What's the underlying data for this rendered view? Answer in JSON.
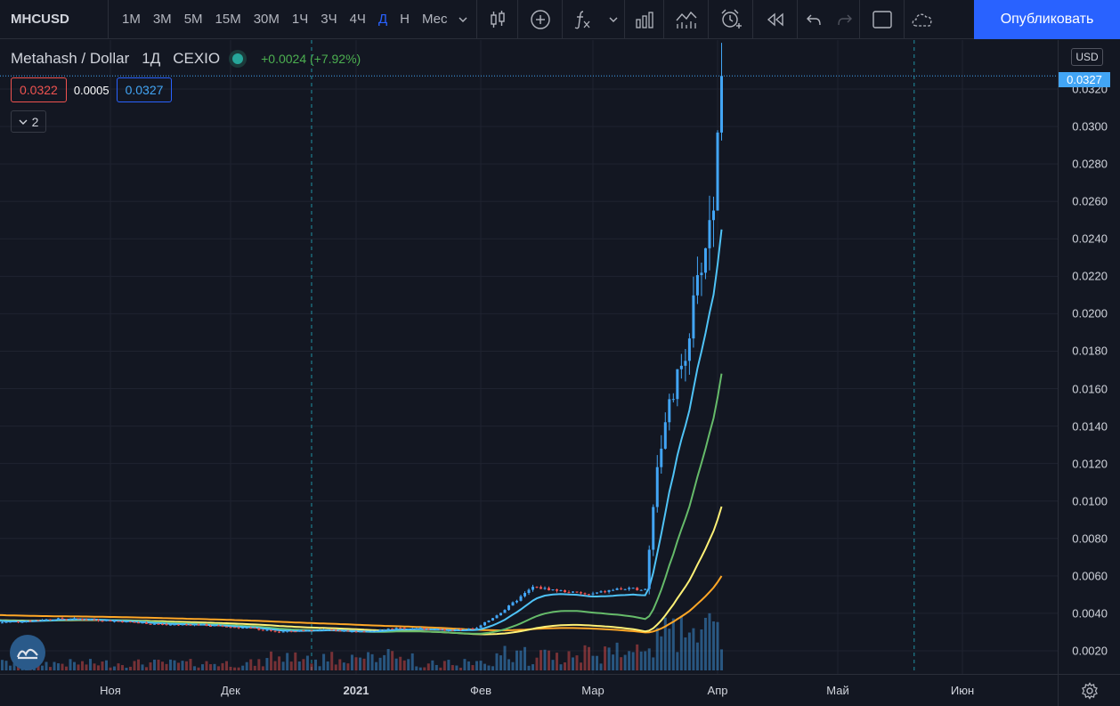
{
  "toolbar": {
    "symbol": "MHCUSD",
    "intervals": [
      "1М",
      "3М",
      "5М",
      "15М",
      "30М",
      "1Ч",
      "3Ч",
      "4Ч",
      "Д",
      "Н",
      "Мес"
    ],
    "active_interval": "Д",
    "publish_label": "Опубликовать"
  },
  "legend": {
    "title": "Metahash / Dollar",
    "interval": "1Д",
    "exchange": "CEXIO",
    "change": "+0.0024 (+7.92%)",
    "bid": "0.0322",
    "spread": "0.0005",
    "ask": "0.0327",
    "indicators_count": "2"
  },
  "price_axis": {
    "currency": "USD",
    "last_price": "0.0327",
    "labels": [
      "0.0320",
      "0.0300",
      "0.0280",
      "0.0260",
      "0.0240",
      "0.0220",
      "0.0200",
      "0.0180",
      "0.0160",
      "0.0140",
      "0.0120",
      "0.0100",
      "0.0080",
      "0.0060",
      "0.0040",
      "0.0020"
    ]
  },
  "time_axis": {
    "labels": [
      "Ноя",
      "Дек",
      "2021",
      "Фев",
      "Мар",
      "Апр",
      "Май",
      "Июн"
    ]
  },
  "colors": {
    "background": "#131722",
    "up": "#42a5f5",
    "down": "#ef5350",
    "ma_fast": "#4fc3f7",
    "ma_mid": "#66bb6a",
    "ma_slow": "#fff176",
    "ma_slowest": "#ffa726",
    "accent": "#2962ff"
  },
  "chart_data": {
    "type": "candlestick",
    "symbol": "MHCUSD",
    "x_range": [
      "2020-10-04",
      "2021-06-20"
    ],
    "y_range": [
      0.001,
      0.0335
    ],
    "close_series": [
      [
        "2020-10-04",
        0.0035
      ],
      [
        "2020-10-11",
        0.0036
      ],
      [
        "2020-10-18",
        0.0037
      ],
      [
        "2020-10-25",
        0.0037
      ],
      [
        "2020-11-01",
        0.0036
      ],
      [
        "2020-11-08",
        0.0035
      ],
      [
        "2020-11-15",
        0.0034
      ],
      [
        "2020-11-22",
        0.0034
      ],
      [
        "2020-11-29",
        0.0033
      ],
      [
        "2020-12-06",
        0.0032
      ],
      [
        "2020-12-13",
        0.003
      ],
      [
        "2020-12-20",
        0.0031
      ],
      [
        "2020-12-27",
        0.0031
      ],
      [
        "2021-01-03",
        0.003
      ],
      [
        "2021-01-10",
        0.0032
      ],
      [
        "2021-01-17",
        0.0032
      ],
      [
        "2021-01-24",
        0.0031
      ],
      [
        "2021-01-31",
        0.0032
      ],
      [
        "2021-02-07",
        0.0042
      ],
      [
        "2021-02-14",
        0.0054
      ],
      [
        "2021-02-21",
        0.0052
      ],
      [
        "2021-02-28",
        0.005
      ],
      [
        "2021-03-07",
        0.0053
      ],
      [
        "2021-03-14",
        0.0053
      ],
      [
        "2021-03-17",
        0.012
      ],
      [
        "2021-03-20",
        0.015
      ],
      [
        "2021-03-24",
        0.018
      ],
      [
        "2021-03-27",
        0.0215
      ],
      [
        "2021-03-31",
        0.026
      ],
      [
        "2021-04-02",
        0.0327
      ]
    ],
    "ma_fast_end": 0.0245,
    "ma_mid_end": 0.0168,
    "ma_slow_end": 0.0097,
    "ma_slowest_end": 0.006
  }
}
